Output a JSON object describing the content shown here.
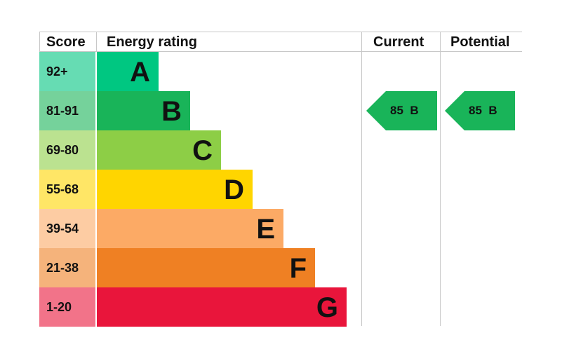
{
  "headers": {
    "score": "Score",
    "rating": "Energy rating",
    "current": "Current",
    "potential": "Potential"
  },
  "chart_data": {
    "type": "bar",
    "bands": [
      {
        "score": "92+",
        "letter": "A",
        "bar_color": "#00c781",
        "score_color": "#66dcb3"
      },
      {
        "score": "81-91",
        "letter": "B",
        "bar_color": "#19b459",
        "score_color": "#75d29b"
      },
      {
        "score": "69-80",
        "letter": "C",
        "bar_color": "#8dce46",
        "score_color": "#bbe290"
      },
      {
        "score": "55-68",
        "letter": "D",
        "bar_color": "#ffd500",
        "score_color": "#ffe666"
      },
      {
        "score": "39-54",
        "letter": "E",
        "bar_color": "#fcaa65",
        "score_color": "#fdcca3"
      },
      {
        "score": "21-38",
        "letter": "F",
        "bar_color": "#ef8023",
        "score_color": "#f5b37b"
      },
      {
        "score": "1-20",
        "letter": "G",
        "bar_color": "#e9153b",
        "score_color": "#f27389"
      }
    ],
    "current": {
      "value": 85,
      "band": "B",
      "label": "85  B",
      "color": "#19b459"
    },
    "potential": {
      "value": 85,
      "band": "B",
      "label": "85  B",
      "color": "#19b459"
    }
  }
}
